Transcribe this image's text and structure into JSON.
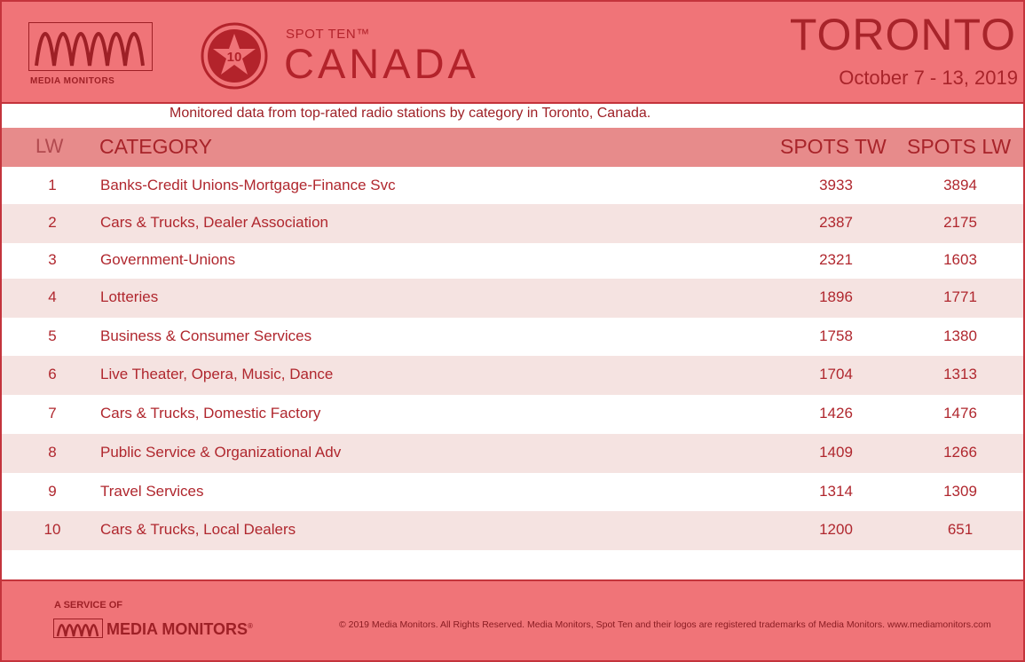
{
  "brand": {
    "logo_text": "MEDIA MONITORS",
    "badge_number": "10",
    "spot_ten": "SPOT TEN™",
    "country": "CANADA"
  },
  "header": {
    "city": "TORONTO",
    "dates": "October 7 - 13, 2019"
  },
  "subtitle": "Monitored data from top-rated radio stations by category in Toronto, Canada.",
  "table": {
    "columns": [
      "LW",
      "CATEGORY",
      "SPOTS TW",
      "SPOTS LW"
    ],
    "rows": [
      {
        "lw": "1",
        "category": "Banks-Credit Unions-Mortgage-Finance Svc",
        "spots_tw": "3933",
        "spots_lw": "3894"
      },
      {
        "lw": "2",
        "category": "Cars & Trucks, Dealer Association",
        "spots_tw": "2387",
        "spots_lw": "2175"
      },
      {
        "lw": "3",
        "category": "Government-Unions",
        "spots_tw": "2321",
        "spots_lw": "1603"
      },
      {
        "lw": "4",
        "category": "Lotteries",
        "spots_tw": "1896",
        "spots_lw": "1771"
      },
      {
        "lw": "5",
        "category": "Business & Consumer Services",
        "spots_tw": "1758",
        "spots_lw": "1380"
      },
      {
        "lw": "6",
        "category": "Live Theater, Opera, Music, Dance",
        "spots_tw": "1704",
        "spots_lw": "1313"
      },
      {
        "lw": "7",
        "category": "Cars & Trucks, Domestic Factory",
        "spots_tw": "1426",
        "spots_lw": "1476"
      },
      {
        "lw": "8",
        "category": "Public Service & Organizational Adv",
        "spots_tw": "1409",
        "spots_lw": "1266"
      },
      {
        "lw": "9",
        "category": "Travel Services",
        "spots_tw": "1314",
        "spots_lw": "1309"
      },
      {
        "lw": "10",
        "category": "Cars & Trucks, Local Dealers",
        "spots_tw": "1200",
        "spots_lw": "651"
      }
    ]
  },
  "footer": {
    "service_of": "A SERVICE OF",
    "logo_text": "MEDIA MONITORS",
    "registered": "®",
    "copyright": "© 2019 Media Monitors. All Rights Reserved. Media Monitors, Spot Ten and their logos are registered trademarks of Media Monitors. www.mediamonitors.com"
  },
  "colors": {
    "banner": "#f07478",
    "header_row": "#e78b8b",
    "alt_row": "#f5e3e1",
    "text_red": "#b0272e",
    "border": "#c4343c"
  }
}
